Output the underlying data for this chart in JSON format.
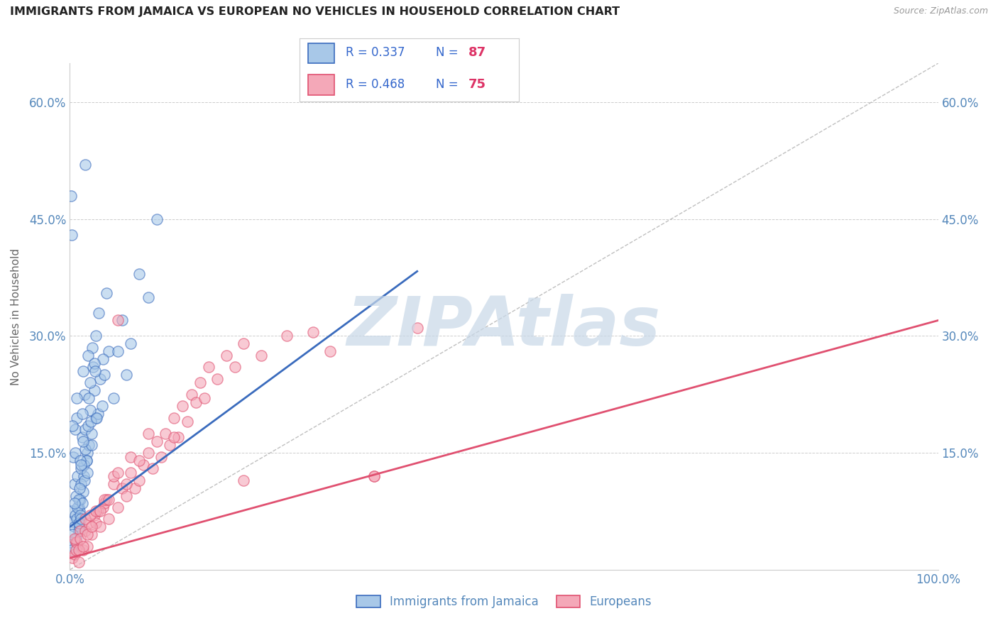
{
  "title": "IMMIGRANTS FROM JAMAICA VS EUROPEAN NO VEHICLES IN HOUSEHOLD CORRELATION CHART",
  "source": "Source: ZipAtlas.com",
  "ylabel": "No Vehicles in Household",
  "xlim": [
    0.0,
    100.0
  ],
  "ylim": [
    0.0,
    65.0
  ],
  "xtick_positions": [
    0.0,
    10.0,
    20.0,
    30.0,
    40.0,
    50.0,
    60.0,
    70.0,
    80.0,
    90.0,
    100.0
  ],
  "ytick_positions": [
    0.0,
    15.0,
    30.0,
    45.0,
    60.0
  ],
  "ytick_labels": [
    "",
    "15.0%",
    "30.0%",
    "45.0%",
    "60.0%"
  ],
  "blue_label": "Immigrants from Jamaica",
  "pink_label": "Europeans",
  "blue_color": "#a8c8e8",
  "pink_color": "#f4a8b8",
  "blue_r": 0.337,
  "blue_n": 87,
  "pink_r": 0.468,
  "pink_n": 75,
  "blue_line_color": "#3a6bbd",
  "pink_line_color": "#e05070",
  "ref_line_color": "#b0b0b0",
  "watermark": "ZIPAtlas",
  "watermark_color": "#c8d8e8",
  "title_color": "#222222",
  "axis_label_color": "#666666",
  "tick_label_color": "#5588bb",
  "legend_r_color": "#3366cc",
  "legend_n_color": "#dd3366",
  "blue_scatter_x": [
    0.5,
    0.8,
    1.0,
    1.2,
    1.5,
    0.6,
    0.9,
    1.1,
    1.4,
    1.8,
    2.0,
    2.2,
    2.5,
    2.8,
    3.0,
    3.2,
    3.5,
    4.0,
    4.5,
    5.0,
    5.5,
    6.0,
    7.0,
    8.0,
    9.0,
    10.0,
    1.6,
    1.7,
    1.9,
    2.1,
    2.3,
    2.4,
    2.6,
    3.8,
    4.2,
    0.3,
    0.4,
    0.7,
    1.3,
    2.7,
    0.2,
    0.2,
    0.3,
    0.4,
    0.5,
    0.6,
    0.7,
    0.8,
    0.9,
    1.0,
    1.1,
    1.2,
    1.3,
    1.4,
    1.5,
    1.6,
    1.7,
    1.8,
    1.9,
    2.0,
    2.1,
    2.2,
    2.3,
    2.5,
    2.8,
    3.0,
    3.3,
    3.7,
    0.1,
    0.15,
    1.5,
    1.8,
    6.5,
    0.5,
    0.6,
    0.8,
    1.0,
    1.0,
    1.1,
    1.2,
    1.3,
    1.3,
    1.4,
    2.9,
    3.1,
    0.2,
    0.3
  ],
  "blue_scatter_y": [
    11.0,
    19.5,
    8.0,
    9.0,
    10.0,
    18.0,
    12.0,
    7.5,
    17.0,
    18.0,
    15.0,
    16.0,
    17.5,
    23.0,
    19.5,
    20.0,
    24.5,
    25.0,
    28.0,
    22.0,
    28.0,
    32.0,
    29.0,
    38.0,
    35.0,
    45.0,
    12.0,
    22.5,
    14.0,
    18.5,
    20.5,
    19.0,
    28.5,
    27.0,
    35.5,
    6.2,
    14.5,
    9.5,
    13.0,
    26.0,
    7.5,
    43.0,
    18.5,
    3.0,
    5.5,
    7.0,
    4.0,
    6.5,
    8.0,
    9.0,
    5.5,
    7.0,
    11.0,
    8.5,
    25.5,
    13.5,
    11.5,
    15.5,
    14.0,
    12.5,
    27.5,
    22.0,
    24.0,
    16.0,
    26.5,
    30.0,
    33.0,
    21.0,
    3.5,
    48.0,
    16.5,
    52.0,
    25.0,
    8.5,
    15.0,
    22.0,
    5.0,
    6.0,
    10.5,
    14.0,
    6.5,
    13.5,
    20.0,
    25.5,
    19.5,
    2.5,
    4.5
  ],
  "pink_scatter_x": [
    0.3,
    0.5,
    0.7,
    0.8,
    1.0,
    1.2,
    1.5,
    1.8,
    2.0,
    2.2,
    2.5,
    2.8,
    3.0,
    3.2,
    3.5,
    3.8,
    4.0,
    4.2,
    4.5,
    5.0,
    5.5,
    6.0,
    6.5,
    7.0,
    7.5,
    8.0,
    8.5,
    9.0,
    9.5,
    10.0,
    10.5,
    11.0,
    11.5,
    12.0,
    12.5,
    13.0,
    13.5,
    14.0,
    14.5,
    15.0,
    15.5,
    16.0,
    17.0,
    18.0,
    19.0,
    20.0,
    22.0,
    25.0,
    28.0,
    30.0,
    35.0,
    40.0,
    0.5,
    0.7,
    1.0,
    1.2,
    1.5,
    1.8,
    2.0,
    2.3,
    2.5,
    3.0,
    3.5,
    4.0,
    4.5,
    5.0,
    5.5,
    6.5,
    7.0,
    8.0,
    9.0,
    12.0,
    20.0,
    35.0,
    5.5
  ],
  "pink_scatter_y": [
    1.5,
    2.0,
    3.5,
    3.5,
    1.0,
    5.0,
    2.5,
    5.0,
    3.0,
    6.0,
    4.5,
    7.0,
    6.0,
    7.5,
    5.5,
    8.0,
    8.5,
    9.0,
    6.5,
    11.0,
    8.0,
    10.5,
    9.5,
    12.5,
    10.5,
    11.5,
    13.5,
    15.0,
    13.0,
    16.5,
    14.5,
    17.5,
    16.0,
    19.5,
    17.0,
    21.0,
    19.0,
    22.5,
    21.5,
    24.0,
    22.0,
    26.0,
    24.5,
    27.5,
    26.0,
    29.0,
    27.5,
    30.0,
    30.5,
    28.0,
    12.0,
    31.0,
    4.0,
    2.5,
    2.5,
    4.0,
    3.0,
    6.5,
    4.5,
    7.0,
    5.5,
    7.5,
    7.5,
    9.0,
    9.0,
    12.0,
    12.5,
    11.0,
    14.5,
    14.0,
    17.5,
    17.0,
    11.5,
    12.0,
    32.0
  ],
  "blue_line_x": [
    0.0,
    40.0
  ],
  "blue_line_y_intercept": 5.5,
  "blue_line_slope": 0.82,
  "pink_line_x": [
    0.0,
    100.0
  ],
  "pink_line_y_intercept": 1.5,
  "pink_line_slope": 0.305
}
